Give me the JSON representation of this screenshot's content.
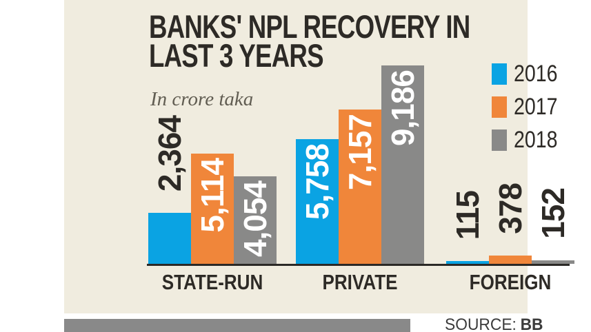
{
  "title": {
    "line1": "BANKS' NPL RECOVERY IN",
    "line2": "LAST 3 YEARS"
  },
  "subtitle": "In crore taka",
  "legend": [
    {
      "label": "2016",
      "color": "#0aa3e3"
    },
    {
      "label": "2017",
      "color": "#f0863a"
    },
    {
      "label": "2018",
      "color": "#898988"
    }
  ],
  "source": {
    "label": "SOURCE:",
    "value": "BB"
  },
  "colors": {
    "panel_background": "#f0ecdf",
    "page_background": "#ffffff",
    "series_2016": "#0aa3e3",
    "series_2017": "#f0863a",
    "series_2018": "#898988",
    "dark_text": "#2d2a26",
    "axis_line": "#2b2926",
    "footer_bar": "#898989"
  },
  "chart_data": {
    "type": "bar",
    "title": "BANKS' NPL RECOVERY IN LAST 3 YEARS",
    "unit": "In crore taka",
    "categories": [
      "STATE-RUN",
      "PRIVATE",
      "FOREIGN"
    ],
    "series": [
      {
        "name": "2016",
        "color": "#0aa3e3",
        "values": [
          2364,
          5758,
          115
        ]
      },
      {
        "name": "2017",
        "color": "#f0863a",
        "values": [
          5114,
          7157,
          378
        ]
      },
      {
        "name": "2018",
        "color": "#898988",
        "values": [
          4054,
          9186,
          152
        ]
      }
    ],
    "value_labels": {
      "STATE-RUN": [
        "2,364",
        "5,114",
        "4,054"
      ],
      "PRIVATE": [
        "5,758",
        "7,157",
        "9,186"
      ],
      "FOREIGN": [
        "115",
        "378",
        "152"
      ]
    },
    "ylim": [
      0,
      9186
    ],
    "grid": false,
    "data_labels": "rotated-90-on-or-above-bars",
    "legend_position": "top-right",
    "source": "BB"
  }
}
